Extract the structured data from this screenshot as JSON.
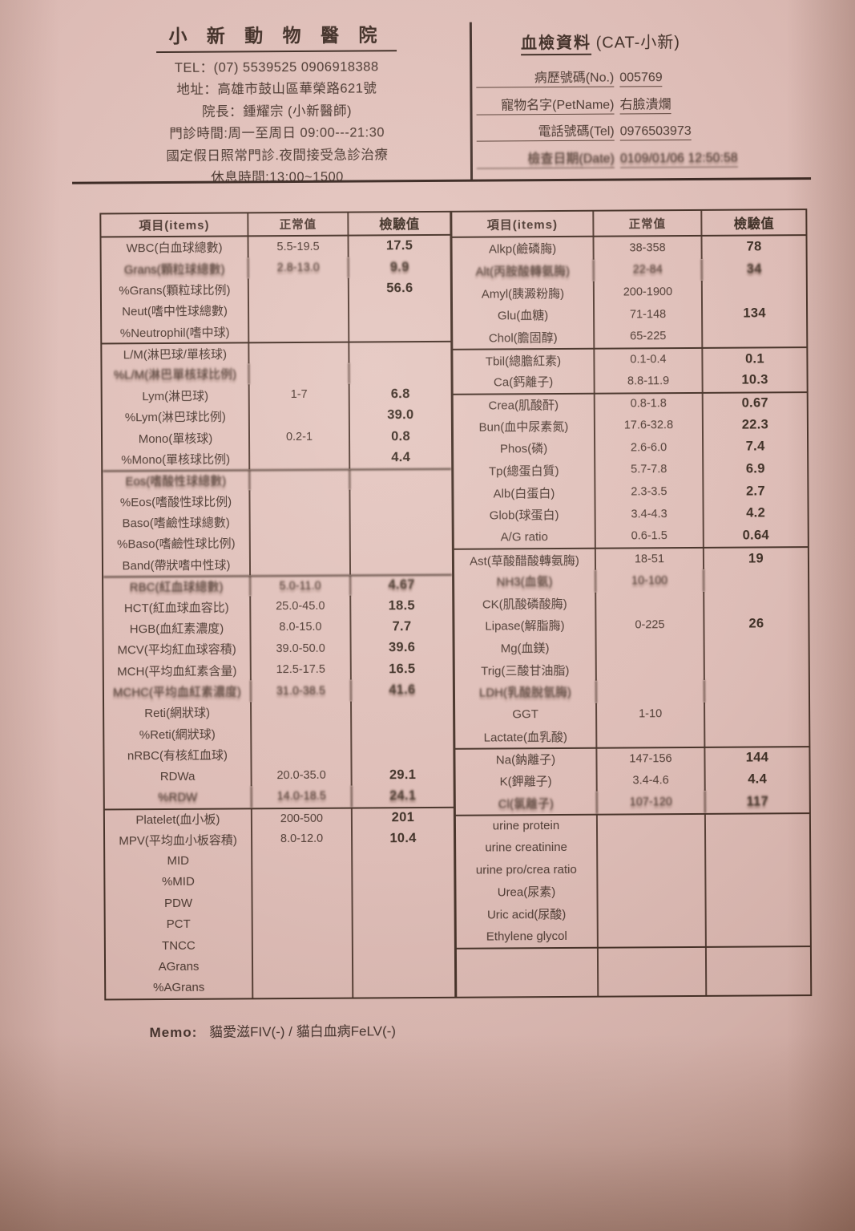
{
  "colors": {
    "paper": "#dcbab4",
    "ink": "#46332b",
    "border": "#412d23",
    "value_ink": "#38291f"
  },
  "clinic": {
    "name": "小 新 動 物 醫 院",
    "tel_line": "TEL：(07) 5539525  0906918388",
    "address_line": "地址：高雄市鼓山區華榮路621號",
    "director_line": "院長：鍾耀宗 (小新醫師)",
    "hours_line": "門診時間:周一至周日 09:00---21:30",
    "holiday_line": "國定假日照常門診.夜間接受急診治療",
    "break_line": "休息時間:13:00~1500"
  },
  "report": {
    "title": "血檢資料",
    "title_suffix": "(CAT-小新)",
    "fields": [
      {
        "label": "病歷號碼(No.)",
        "value": "005769"
      },
      {
        "label": "寵物名字(PetName)",
        "value": "右臉潰爛"
      },
      {
        "label": "電話號碼(Tel)",
        "value": "0976503973"
      },
      {
        "label": "檢查日期(Date)",
        "value": "0109/01/06 12:50:58",
        "blur": true
      }
    ]
  },
  "table_headers": {
    "item": "項目(items)",
    "normal": "正常值",
    "value": "檢驗值"
  },
  "left_rows": [
    {
      "item": "WBC(白血球總數)",
      "normal": "5.5-19.5",
      "value": "17.5"
    },
    {
      "item": "Grans(顆粒球總數)",
      "normal": "2.8-13.0",
      "value": "9.9",
      "blur": true
    },
    {
      "item": "%Grans(顆粒球比例)",
      "normal": "",
      "value": "56.6"
    },
    {
      "item": "Neut(嗜中性球總數)",
      "normal": "",
      "value": ""
    },
    {
      "item": "%Neutrophil(嗜中球)",
      "normal": "",
      "value": ""
    },
    {
      "item": "L/M(淋巴球/單核球)",
      "normal": "",
      "value": "",
      "section": true
    },
    {
      "item": "%L/M(淋巴單核球比例)",
      "normal": "",
      "value": "",
      "blur": true
    },
    {
      "item": "Lym(淋巴球)",
      "normal": "1-7",
      "value": "6.8"
    },
    {
      "item": "%Lym(淋巴球比例)",
      "normal": "",
      "value": "39.0"
    },
    {
      "item": "Mono(單核球)",
      "normal": "0.2-1",
      "value": "0.8"
    },
    {
      "item": "%Mono(單核球比例)",
      "normal": "",
      "value": "4.4"
    },
    {
      "item": "Eos(嗜酸性球總數)",
      "normal": "",
      "value": "",
      "section": true,
      "blur": true
    },
    {
      "item": "%Eos(嗜酸性球比例)",
      "normal": "",
      "value": ""
    },
    {
      "item": "Baso(嗜鹼性球總數)",
      "normal": "",
      "value": ""
    },
    {
      "item": "%Baso(嗜鹼性球比例)",
      "normal": "",
      "value": ""
    },
    {
      "item": "Band(帶狀嗜中性球)",
      "normal": "",
      "value": ""
    },
    {
      "item": "RBC(紅血球總數)",
      "normal": "5.0-11.0",
      "value": "4.67",
      "section": true,
      "blur": true
    },
    {
      "item": "HCT(紅血球血容比)",
      "normal": "25.0-45.0",
      "value": "18.5"
    },
    {
      "item": "HGB(血紅素濃度)",
      "normal": "8.0-15.0",
      "value": "7.7"
    },
    {
      "item": "MCV(平均紅血球容積)",
      "normal": "39.0-50.0",
      "value": "39.6"
    },
    {
      "item": "MCH(平均血紅素含量)",
      "normal": "12.5-17.5",
      "value": "16.5"
    },
    {
      "item": "MCHC(平均血紅素濃度)",
      "normal": "31.0-38.5",
      "value": "41.6",
      "blur": true
    },
    {
      "item": "Reti(網狀球)",
      "normal": "",
      "value": ""
    },
    {
      "item": "%Reti(網狀球)",
      "normal": "",
      "value": ""
    },
    {
      "item": "nRBC(有核紅血球)",
      "normal": "",
      "value": ""
    },
    {
      "item": "RDWa",
      "normal": "20.0-35.0",
      "value": "29.1"
    },
    {
      "item": "%RDW",
      "normal": "14.0-18.5",
      "value": "24.1",
      "blur": true
    },
    {
      "item": "Platelet(血小板)",
      "normal": "200-500",
      "value": "201",
      "section": true
    },
    {
      "item": "MPV(平均血小板容積)",
      "normal": "8.0-12.0",
      "value": "10.4"
    },
    {
      "item": "MID",
      "normal": "",
      "value": ""
    },
    {
      "item": "%MID",
      "normal": "",
      "value": ""
    },
    {
      "item": "PDW",
      "normal": "",
      "value": ""
    },
    {
      "item": "PCT",
      "normal": "",
      "value": ""
    },
    {
      "item": "TNCC",
      "normal": "",
      "value": ""
    },
    {
      "item": "AGrans",
      "normal": "",
      "value": ""
    },
    {
      "item": "%AGrans",
      "normal": "",
      "value": ""
    }
  ],
  "right_rows": [
    {
      "item": "Alkp(鹼磷脢)",
      "normal": "38-358",
      "value": "78"
    },
    {
      "item": "Alt(丙胺酸轉氨脢)",
      "normal": "22-84",
      "value": "34",
      "blur": true
    },
    {
      "item": "Amyl(胰澱粉脢)",
      "normal": "200-1900",
      "value": ""
    },
    {
      "item": "Glu(血糖)",
      "normal": "71-148",
      "value": "134"
    },
    {
      "item": "Chol(膽固醇)",
      "normal": "65-225",
      "value": ""
    },
    {
      "item": "Tbil(總膽紅素)",
      "normal": "0.1-0.4",
      "value": "0.1",
      "section": true
    },
    {
      "item": "Ca(鈣離子)",
      "normal": "8.8-11.9",
      "value": "10.3"
    },
    {
      "item": "Crea(肌酸酐)",
      "normal": "0.8-1.8",
      "value": "0.67",
      "section": true
    },
    {
      "item": "Bun(血中尿素氮)",
      "normal": "17.6-32.8",
      "value": "22.3"
    },
    {
      "item": "Phos(磷)",
      "normal": "2.6-6.0",
      "value": "7.4"
    },
    {
      "item": "Tp(總蛋白質)",
      "normal": "5.7-7.8",
      "value": "6.9"
    },
    {
      "item": "Alb(白蛋白)",
      "normal": "2.3-3.5",
      "value": "2.7"
    },
    {
      "item": "Glob(球蛋白)",
      "normal": "3.4-4.3",
      "value": "4.2"
    },
    {
      "item": "A/G ratio",
      "normal": "0.6-1.5",
      "value": "0.64"
    },
    {
      "item": "Ast(草酸醋酸轉氨脢)",
      "normal": "18-51",
      "value": "19",
      "section": true
    },
    {
      "item": "NH3(血氨)",
      "normal": "10-100",
      "value": "",
      "blur": true
    },
    {
      "item": "CK(肌酸磷酸脢)",
      "normal": "",
      "value": ""
    },
    {
      "item": "Lipase(解脂脢)",
      "normal": "0-225",
      "value": "26"
    },
    {
      "item": "Mg(血鎂)",
      "normal": "",
      "value": ""
    },
    {
      "item": "Trig(三酸甘油脂)",
      "normal": "",
      "value": ""
    },
    {
      "item": "LDH(乳酸脫氫脢)",
      "normal": "",
      "value": "",
      "blur": true
    },
    {
      "item": "GGT",
      "normal": "1-10",
      "value": ""
    },
    {
      "item": "Lactate(血乳酸)",
      "normal": "",
      "value": ""
    },
    {
      "item": "Na(鈉離子)",
      "normal": "147-156",
      "value": "144",
      "section": true
    },
    {
      "item": "K(鉀離子)",
      "normal": "3.4-4.6",
      "value": "4.4"
    },
    {
      "item": "Cl(氯離子)",
      "normal": "107-120",
      "value": "117",
      "blur": true
    },
    {
      "item": "urine protein",
      "normal": "",
      "value": "",
      "section": true
    },
    {
      "item": "urine creatinine",
      "normal": "",
      "value": ""
    },
    {
      "item": "urine pro/crea ratio",
      "normal": "",
      "value": ""
    },
    {
      "item": "Urea(尿素)",
      "normal": "",
      "value": ""
    },
    {
      "item": "Uric acid(尿酸)",
      "normal": "",
      "value": ""
    },
    {
      "item": "Ethylene glycol",
      "normal": "",
      "value": ""
    }
  ],
  "memo": {
    "label": "Memo:",
    "text": "貓愛滋FIV(-) / 貓白血病FeLV(-)"
  }
}
